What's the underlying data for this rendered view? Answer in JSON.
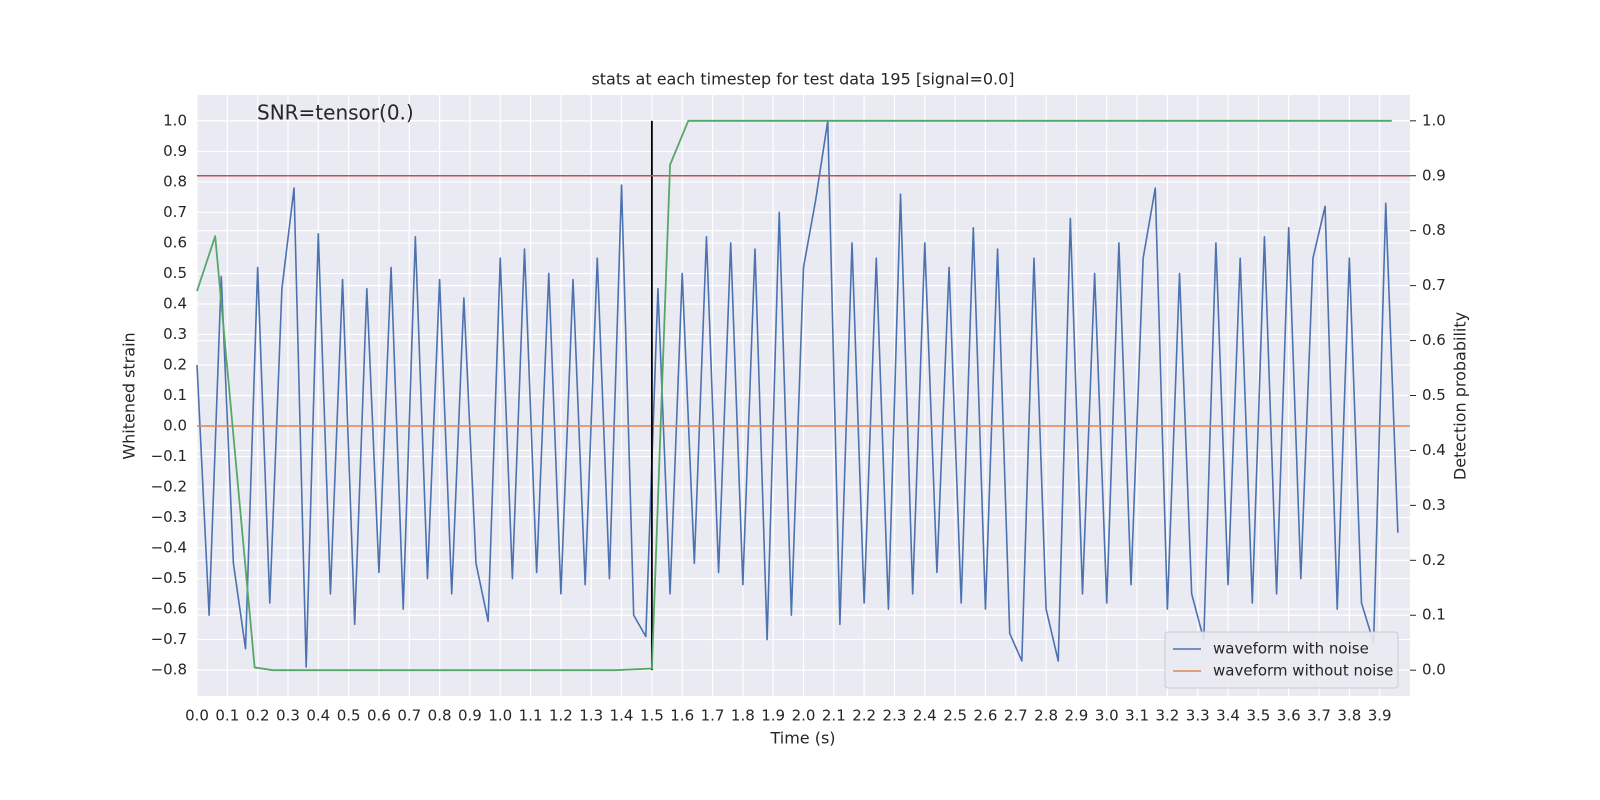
{
  "chart_data": {
    "type": "line",
    "title": "stats at each timestep for test data 195 [signal=0.0]",
    "xlabel": "Time (s)",
    "ylabel": "Whitened strain",
    "y2label": "Detection probability",
    "annotation": "SNR=tensor(0.)",
    "grid": true,
    "legend": "lower right",
    "xlim": [
      0,
      4.0
    ],
    "ylim": [
      -0.885,
      1.085
    ],
    "y2lim": [
      -0.047,
      1.047
    ],
    "xticks": [
      {
        "value": 0,
        "label": "0.0"
      },
      0.1,
      0.2,
      0.3,
      0.4,
      0.5,
      0.6,
      0.7,
      0.8,
      0.9,
      {
        "value": 1,
        "label": "1.0"
      },
      1.1,
      1.2,
      1.3,
      1.4,
      1.5,
      1.6,
      1.7,
      1.8,
      1.9,
      {
        "value": 2,
        "label": "2.0"
      },
      2.1,
      2.2,
      2.3,
      2.4,
      2.5,
      2.6,
      2.7,
      2.8,
      2.9,
      {
        "value": 3,
        "label": "3.0"
      },
      3.1,
      3.2,
      3.3,
      3.4,
      3.5,
      3.6,
      3.7,
      3.8,
      3.9
    ],
    "yticks": [
      {
        "value": -0.8,
        "label": "−0.8"
      },
      {
        "value": -0.7,
        "label": "−0.7"
      },
      {
        "value": -0.6,
        "label": "−0.6"
      },
      {
        "value": -0.5,
        "label": "−0.5"
      },
      {
        "value": -0.4,
        "label": "−0.4"
      },
      {
        "value": -0.3,
        "label": "−0.3"
      },
      {
        "value": -0.2,
        "label": "−0.2"
      },
      {
        "value": -0.1,
        "label": "−0.1"
      },
      {
        "value": 0,
        "label": "0.0"
      },
      0.1,
      0.2,
      0.3,
      0.4,
      0.5,
      0.6,
      0.7,
      0.8,
      0.9,
      {
        "value": 1,
        "label": "1.0"
      }
    ],
    "y2ticks": [
      {
        "value": 0,
        "label": "0.0"
      },
      0.1,
      0.2,
      0.3,
      0.4,
      0.5,
      0.6,
      0.7,
      0.8,
      0.9,
      {
        "value": 1,
        "label": "1.0"
      }
    ],
    "series": [
      {
        "name": "waveform with noise",
        "color": "#4c72b0",
        "x": [
          0,
          0.04,
          0.08,
          0.12,
          0.16,
          0.2,
          0.24,
          0.28,
          0.32,
          0.36,
          0.4,
          0.44,
          0.48,
          0.52,
          0.56,
          0.6,
          0.64,
          0.68,
          0.72,
          0.76,
          0.8,
          0.84,
          0.88,
          0.92,
          0.96,
          1.0,
          1.04,
          1.08,
          1.12,
          1.16,
          1.2,
          1.24,
          1.28,
          1.32,
          1.36,
          1.4,
          1.44,
          1.48,
          1.52,
          1.56,
          1.6,
          1.64,
          1.68,
          1.72,
          1.76,
          1.8,
          1.84,
          1.88,
          1.92,
          1.96,
          2.0,
          2.04,
          2.08,
          2.12,
          2.16,
          2.2,
          2.24,
          2.28,
          2.32,
          2.36,
          2.4,
          2.44,
          2.48,
          2.52,
          2.56,
          2.6,
          2.64,
          2.68,
          2.72,
          2.76,
          2.8,
          2.84,
          2.88,
          2.92,
          2.96,
          3.0,
          3.04,
          3.08,
          3.12,
          3.16,
          3.2,
          3.24,
          3.28,
          3.32,
          3.36,
          3.4,
          3.44,
          3.48,
          3.52,
          3.56,
          3.6,
          3.64,
          3.68,
          3.72,
          3.76,
          3.8,
          3.84,
          3.88,
          3.92,
          3.96
        ],
        "values": [
          0.2,
          -0.62,
          0.49,
          -0.45,
          -0.73,
          0.52,
          -0.58,
          0.45,
          0.78,
          -0.79,
          0.63,
          -0.55,
          0.48,
          -0.65,
          0.45,
          -0.48,
          0.52,
          -0.6,
          0.62,
          -0.5,
          0.48,
          -0.55,
          0.42,
          -0.45,
          -0.64,
          0.55,
          -0.5,
          0.58,
          -0.48,
          0.5,
          -0.55,
          0.48,
          -0.52,
          0.55,
          -0.5,
          0.79,
          -0.62,
          -0.69,
          0.45,
          -0.55,
          0.5,
          -0.45,
          0.62,
          -0.48,
          0.6,
          -0.52,
          0.58,
          -0.7,
          0.7,
          -0.62,
          0.52,
          0.74,
          1.0,
          -0.65,
          0.6,
          -0.58,
          0.55,
          -0.6,
          0.76,
          -0.55,
          0.6,
          -0.48,
          0.52,
          -0.58,
          0.65,
          -0.6,
          0.58,
          -0.68,
          -0.77,
          0.55,
          -0.6,
          -0.77,
          0.68,
          -0.55,
          0.5,
          -0.58,
          0.6,
          -0.52,
          0.55,
          0.78,
          -0.6,
          0.5,
          -0.55,
          -0.7,
          0.6,
          -0.52,
          0.55,
          -0.58,
          0.62,
          -0.55,
          0.65,
          -0.5,
          0.55,
          0.72,
          -0.6,
          0.55,
          -0.58,
          -0.71,
          0.73,
          -0.35
        ]
      },
      {
        "name": "waveform without noise",
        "color": "#dd8452",
        "x": [
          0,
          4.0
        ],
        "values": [
          0,
          0
        ]
      },
      {
        "color": "#55a868",
        "axis": "y2",
        "x": [
          0,
          0.06,
          0.19,
          0.25,
          1.38,
          1.5,
          1.56,
          1.62,
          3.94
        ],
        "values": [
          0.69,
          0.79,
          0.005,
          0,
          0,
          0.003,
          0.92,
          1.0,
          1.0
        ]
      }
    ],
    "threshold": {
      "value": 0.9,
      "axis": "y2",
      "color": "#c44e52"
    },
    "vline": {
      "x": 1.5,
      "ymin": -0.8,
      "ymax": 1.0,
      "color": "#000000"
    }
  }
}
